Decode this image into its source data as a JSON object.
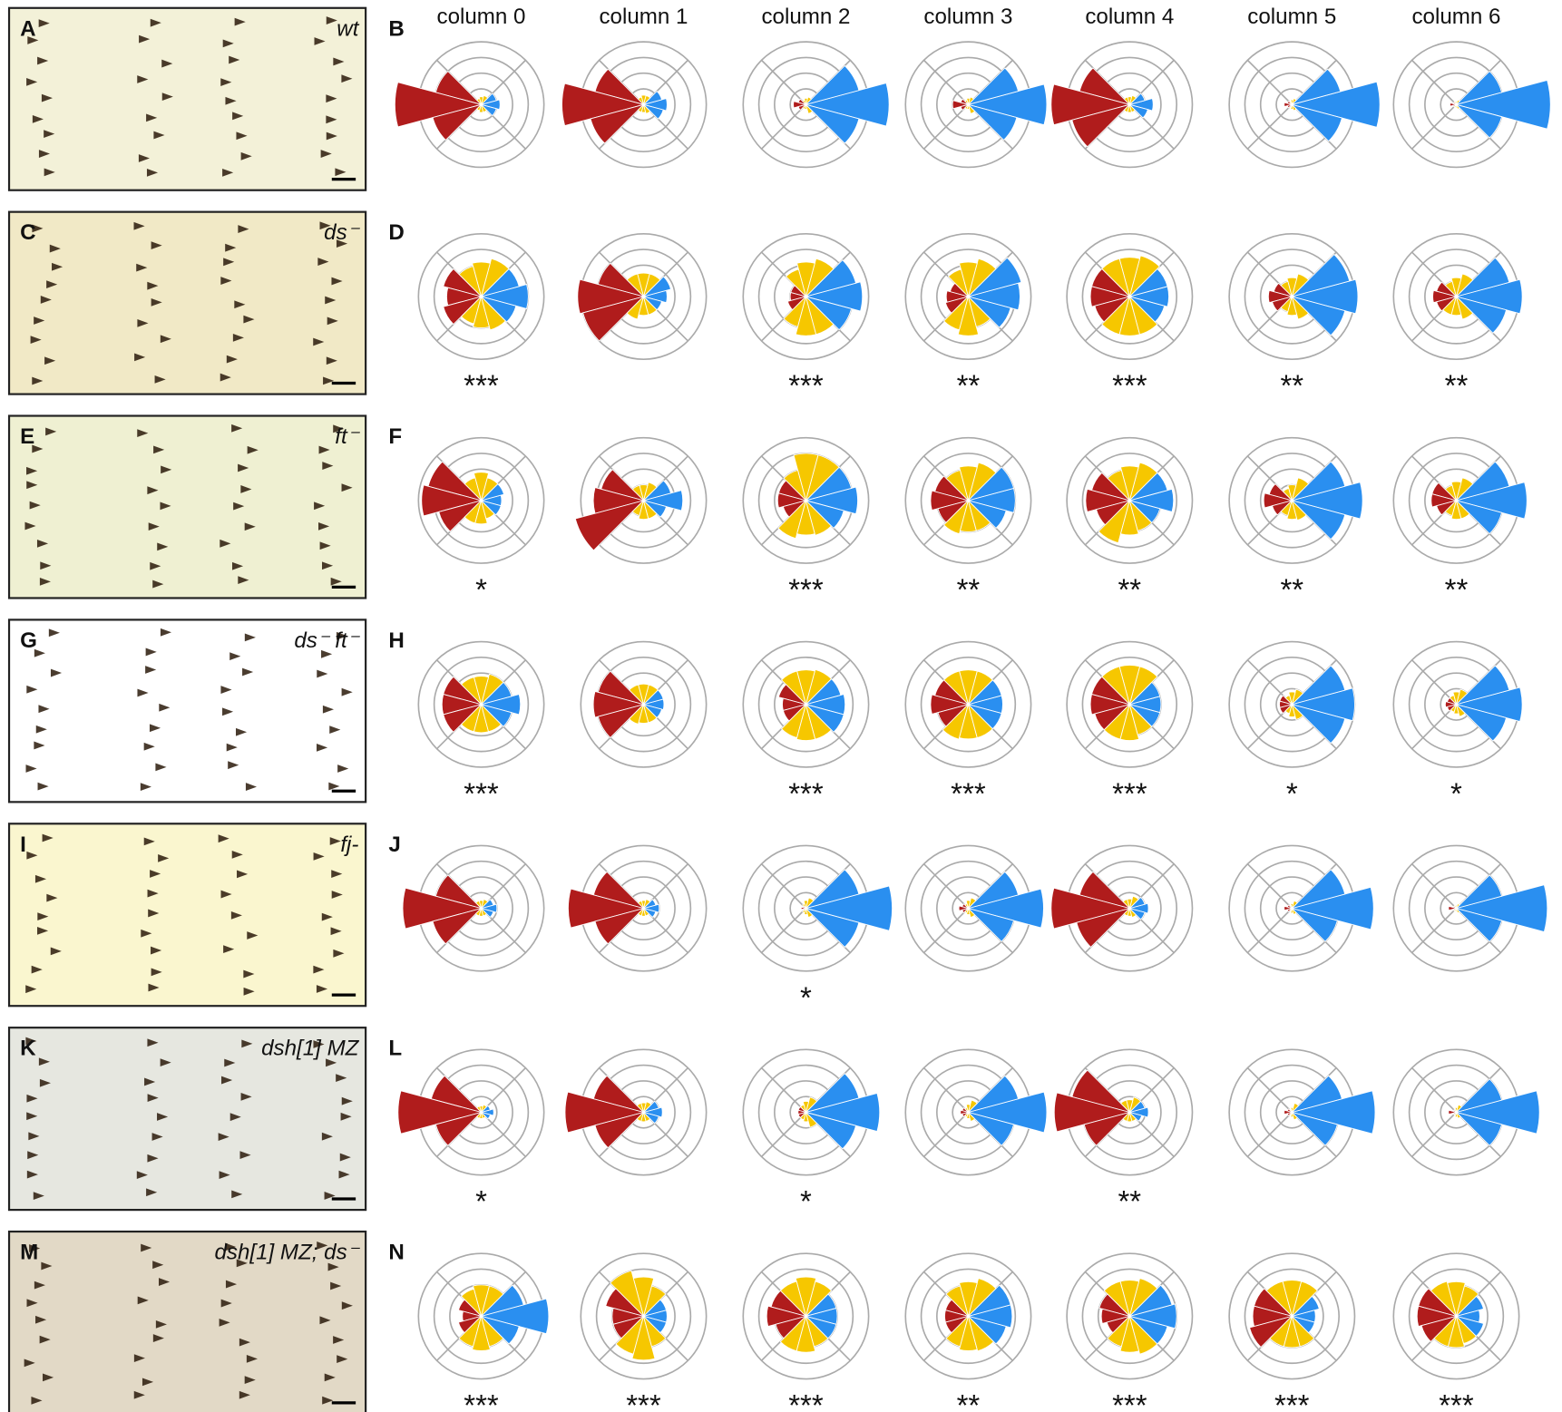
{
  "column_headers": [
    "column 0",
    "column 1",
    "column 2",
    "column 3",
    "column 4",
    "column 5",
    "column 6"
  ],
  "rings": 4,
  "bin_centers": [
    0,
    30,
    60,
    90,
    120,
    150,
    180,
    210,
    240,
    270,
    300,
    330
  ],
  "bin_colors": [
    "#2a8ff0",
    "#2a8ff0",
    "#f6c700",
    "#f6c700",
    "#f6c700",
    "#b01c1c",
    "#b01c1c",
    "#b01c1c",
    "#f6c700",
    "#f6c700",
    "#f6c700",
    "#2a8ff0"
  ],
  "rows": [
    {
      "image_label": "A",
      "genotype": "wt",
      "plot_label": "B",
      "plots": [
        {
          "values": [
            1.2,
            1,
            0.6,
            0.5,
            0.4,
            3,
            5.5,
            3.2,
            0.4,
            0.5,
            0.5,
            1
          ]
        },
        {
          "values": [
            1.5,
            1.2,
            0.6,
            0.6,
            0.5,
            3.2,
            5.2,
            3.5,
            0.5,
            0.5,
            0.6,
            1.3
          ]
        },
        {
          "values": [
            5.3,
            3.5,
            0.5,
            0.4,
            0.3,
            0.5,
            0.8,
            0.5,
            0.3,
            0.3,
            0.6,
            3.5
          ]
        },
        {
          "values": [
            5,
            3.3,
            0.5,
            0.4,
            0.3,
            0.5,
            1,
            0.5,
            0.3,
            0.3,
            0.6,
            3.2
          ]
        },
        {
          "values": [
            1.5,
            1,
            0.6,
            0.5,
            0.5,
            3.3,
            5,
            3.8,
            0.5,
            0.5,
            0.5,
            1.2
          ]
        },
        {
          "values": [
            5.6,
            3.2,
            0.4,
            0.3,
            0.2,
            0.3,
            0.5,
            0.3,
            0.2,
            0.3,
            0.4,
            3.3
          ]
        },
        {
          "values": [
            6,
            3,
            0.3,
            0.2,
            0.2,
            0.2,
            0.4,
            0.2,
            0.2,
            0.2,
            0.3,
            3
          ]
        }
      ]
    },
    {
      "image_label": "C",
      "genotype": "ds⁻",
      "plot_label": "D",
      "plots": [
        {
          "values": [
            3,
            2.5,
            2.5,
            2.2,
            2,
            2.5,
            2.2,
            2.5,
            1.8,
            2,
            2.2,
            2.3
          ],
          "stars": "***"
        },
        {
          "values": [
            1.5,
            1.8,
            1.5,
            1.5,
            1.5,
            3,
            4.2,
            4,
            1.5,
            1.2,
            1.2,
            1.2
          ]
        },
        {
          "values": [
            3.6,
            3.3,
            2.5,
            2.2,
            1.8,
            1,
            1,
            1.2,
            2,
            2.5,
            2.5,
            3
          ],
          "stars": "***"
        },
        {
          "values": [
            3.3,
            3.5,
            2.5,
            2.2,
            1.8,
            1.2,
            1.4,
            1.5,
            2.2,
            2.5,
            2,
            2.8
          ],
          "stars": "**"
        },
        {
          "values": [
            2.5,
            2.5,
            2.7,
            2.5,
            2.5,
            2.5,
            2.5,
            2.3,
            2.5,
            2.5,
            2.5,
            2.3
          ],
          "stars": "***"
        },
        {
          "values": [
            4.2,
            3.8,
            1.5,
            1.2,
            1,
            1.2,
            1.5,
            1.3,
            1,
            1.2,
            1.5,
            3.5
          ],
          "stars": "**"
        },
        {
          "values": [
            4.2,
            3.5,
            1.5,
            1.2,
            1,
            1.3,
            1.5,
            1.3,
            1.2,
            1.2,
            1.5,
            3.3
          ],
          "stars": "**"
        }
      ]
    },
    {
      "image_label": "E",
      "genotype": "ft⁻",
      "plot_label": "F",
      "plots": [
        {
          "values": [
            1.3,
            1.5,
            1.5,
            1.8,
            1.5,
            3.5,
            3.8,
            2.8,
            1.5,
            1.5,
            1.2,
            1.3
          ],
          "stars": "*"
        },
        {
          "values": [
            2.5,
            1.8,
            1.2,
            1,
            1,
            2.8,
            3.2,
            4.5,
            1,
            1.2,
            1.2,
            1.5
          ]
        },
        {
          "values": [
            3.3,
            3,
            3,
            3,
            2,
            1.8,
            1.8,
            1.5,
            2.5,
            2.2,
            2.3,
            2.5
          ],
          "stars": "***"
        },
        {
          "values": [
            3,
            3,
            2.5,
            2.2,
            2,
            2.2,
            2.4,
            2,
            2.2,
            2,
            2,
            2.5
          ],
          "stars": "**"
        },
        {
          "values": [
            2.8,
            2.5,
            2.5,
            2.2,
            2,
            2.5,
            2.8,
            2.2,
            2.8,
            2.2,
            2,
            2
          ],
          "stars": "**"
        },
        {
          "values": [
            4.5,
            3.5,
            1.5,
            1,
            0.8,
            1.5,
            1.8,
            1.3,
            1,
            1.2,
            1.3,
            3.5
          ],
          "stars": "**"
        },
        {
          "values": [
            4.5,
            3.5,
            1.5,
            1.2,
            1,
            1.6,
            1.6,
            1.3,
            1,
            1.2,
            1.2,
            3
          ],
          "stars": "**"
        }
      ]
    },
    {
      "image_label": "G",
      "genotype": "ds⁻ ft⁻",
      "plot_label": "H",
      "plots": [
        {
          "values": [
            2.5,
            2,
            2,
            1.8,
            1.8,
            2.5,
            2.5,
            2.5,
            1.8,
            1.8,
            1.8,
            2
          ],
          "stars": "***"
        },
        {
          "values": [
            1.3,
            1.3,
            1.3,
            1.3,
            1.3,
            3,
            3.2,
            3,
            1.3,
            1.2,
            1.2,
            1.2
          ]
        },
        {
          "values": [
            2.5,
            2.3,
            2.3,
            2.2,
            2.2,
            1.8,
            1.5,
            1.5,
            2.2,
            2.3,
            2.3,
            2.5
          ],
          "stars": "***"
        },
        {
          "values": [
            2.2,
            2.2,
            2.2,
            2.2,
            2.2,
            2.2,
            2.4,
            2,
            2.3,
            2.2,
            2.2,
            2.2
          ],
          "stars": "***"
        },
        {
          "values": [
            2,
            2,
            2.5,
            2.5,
            2.5,
            2.5,
            2.5,
            2.3,
            2.3,
            2.3,
            2,
            2
          ],
          "stars": "***"
        },
        {
          "values": [
            4,
            3.5,
            1,
            0.8,
            0.6,
            0.8,
            0.8,
            0.8,
            0.6,
            0.8,
            1,
            3.5
          ],
          "stars": "*"
        },
        {
          "values": [
            4.2,
            3.5,
            1,
            0.8,
            0.6,
            0.6,
            0.7,
            0.6,
            0.5,
            0.6,
            0.8,
            3.3
          ],
          "stars": "*"
        }
      ]
    },
    {
      "image_label": "I",
      "genotype": "fj-",
      "plot_label": "J",
      "plots": [
        {
          "values": [
            1,
            0.8,
            0.6,
            0.5,
            0.5,
            3,
            5,
            3.2,
            0.5,
            0.5,
            0.5,
            0.8
          ]
        },
        {
          "values": [
            1,
            0.8,
            0.6,
            0.5,
            0.5,
            3.3,
            4.8,
            3.2,
            0.5,
            0.5,
            0.5,
            0.8
          ]
        },
        {
          "values": [
            5.5,
            3.5,
            0.7,
            0.5,
            0.3,
            0.2,
            0.3,
            0.2,
            0.3,
            0.4,
            0.6,
            3.5
          ],
          "stars": "*"
        },
        {
          "values": [
            4.8,
            3.3,
            0.7,
            0.5,
            0.3,
            0.4,
            0.6,
            0.4,
            0.3,
            0.4,
            0.6,
            3
          ]
        },
        {
          "values": [
            1.2,
            1,
            0.8,
            0.6,
            0.6,
            3.3,
            5,
            3.5,
            0.5,
            0.5,
            0.6,
            1
          ]
        },
        {
          "values": [
            5.2,
            3.5,
            0.5,
            0.3,
            0.2,
            0.3,
            0.5,
            0.3,
            0.2,
            0.3,
            0.4,
            3
          ]
        },
        {
          "values": [
            5.8,
            3,
            0.3,
            0.2,
            0.2,
            0.2,
            0.5,
            0.2,
            0.2,
            0.2,
            0.3,
            3
          ]
        }
      ]
    },
    {
      "image_label": "K",
      "genotype": "dsh[1] MZ",
      "plot_label": "L",
      "plots": [
        {
          "values": [
            0.8,
            0.6,
            0.5,
            0.4,
            0.4,
            3.3,
            5.3,
            3,
            0.4,
            0.4,
            0.4,
            0.6
          ],
          "stars": "*"
        },
        {
          "values": [
            1.2,
            1,
            0.7,
            0.6,
            0.6,
            3.3,
            5,
            3.2,
            0.6,
            0.6,
            0.6,
            1
          ]
        },
        {
          "values": [
            4.7,
            3.5,
            1,
            0.7,
            0.5,
            0.5,
            0.5,
            0.5,
            0.5,
            0.6,
            1,
            3.3
          ],
          "stars": "*"
        },
        {
          "values": [
            5,
            3.3,
            0.8,
            0.5,
            0.3,
            0.4,
            0.5,
            0.4,
            0.3,
            0.4,
            0.6,
            3
          ]
        },
        {
          "values": [
            1.2,
            1,
            1,
            0.8,
            0.8,
            3.8,
            4.8,
            3,
            0.6,
            0.6,
            0.6,
            0.8
          ],
          "stars": "**"
        },
        {
          "values": [
            5.3,
            3.3,
            0.6,
            0.3,
            0.2,
            0.3,
            0.5,
            0.3,
            0.2,
            0.3,
            0.5,
            3
          ]
        },
        {
          "values": [
            5.3,
            3,
            0.5,
            0.3,
            0.2,
            0.2,
            0.5,
            0.2,
            0.2,
            0.3,
            0.4,
            3
          ]
        }
      ]
    },
    {
      "image_label": "M",
      "genotype": "dsh[1] MZ; ds⁻",
      "plot_label": "N",
      "plots": [
        {
          "values": [
            4.3,
            2.8,
            2,
            2,
            1.8,
            1.5,
            1.2,
            1.5,
            2,
            2.2,
            2,
            2.5
          ],
          "stars": "***"
        },
        {
          "values": [
            1.5,
            1.5,
            2,
            2.5,
            3,
            2.5,
            2,
            2,
            2.5,
            2.8,
            2,
            1.5
          ],
          "stars": "***"
        },
        {
          "values": [
            2,
            2,
            2.3,
            2.5,
            2.3,
            2.3,
            2.5,
            2,
            2.3,
            2.3,
            2,
            2
          ],
          "stars": "***"
        },
        {
          "values": [
            2.8,
            2.8,
            2.5,
            2.2,
            2,
            1.5,
            1.5,
            1.5,
            2,
            2.2,
            2.3,
            2.5
          ],
          "stars": "**"
        },
        {
          "values": [
            3,
            2.8,
            2.5,
            2.3,
            2.3,
            2,
            1.8,
            1.5,
            2,
            2.3,
            2.5,
            2.5
          ],
          "stars": "***"
        },
        {
          "values": [
            1.5,
            1.8,
            2.3,
            2.3,
            2.3,
            2.5,
            2.5,
            2.8,
            2,
            2,
            2,
            1.5
          ],
          "stars": "***"
        },
        {
          "values": [
            1.5,
            1.8,
            2,
            2.2,
            2.3,
            2.5,
            2.5,
            2.3,
            2,
            2,
            1.8,
            1.8
          ],
          "stars": "***"
        }
      ]
    }
  ]
}
